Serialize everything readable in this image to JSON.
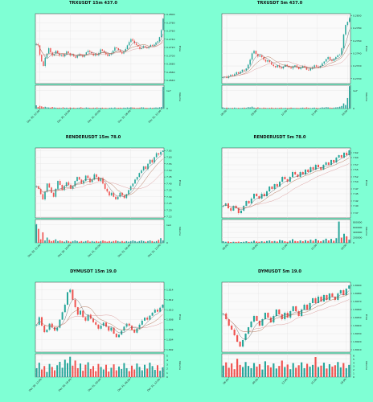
{
  "chart_data": [
    {
      "type": "candlestick",
      "title": "TRXUSDT 15m 437.0",
      "ylabel": "Price",
      "vlabel": "Volume",
      "ylim": [
        0.2632,
        0.2802
      ],
      "yticks": [
        "0.2640",
        "0.2660",
        "0.2680",
        "0.2700",
        "0.2720",
        "0.2740",
        "0.2760",
        "0.2780",
        "0.2800"
      ],
      "vticks": [
        "0",
        "1e7"
      ],
      "vmax": 1.3,
      "xticks": [
        "Dec 30, 12:00",
        "Dec 30, 18:00",
        "Dec 31, 00:00",
        "Dec 31, 06:00",
        "Dec 31, 12:00"
      ],
      "grid": true,
      "closes": [
        0.2728,
        0.2725,
        0.2702,
        0.2686,
        0.2675,
        0.2695,
        0.2705,
        0.2718,
        0.2708,
        0.27,
        0.2704,
        0.2712,
        0.2706,
        0.27,
        0.2702,
        0.2698,
        0.2703,
        0.271,
        0.2706,
        0.27,
        0.2702,
        0.2698,
        0.2695,
        0.27,
        0.2704,
        0.2701,
        0.2697,
        0.2702,
        0.2708,
        0.2712,
        0.2709,
        0.2705,
        0.27,
        0.2704,
        0.2701,
        0.2706,
        0.2715,
        0.2712,
        0.2708,
        0.2703,
        0.2699,
        0.2703,
        0.2706,
        0.2712,
        0.272,
        0.2718,
        0.2714,
        0.2709,
        0.2705,
        0.271,
        0.2716,
        0.2725,
        0.2733,
        0.274,
        0.2736,
        0.273,
        0.2726,
        0.2722,
        0.2716,
        0.2719,
        0.2723,
        0.272,
        0.2718,
        0.2721,
        0.2726,
        0.2724,
        0.2727,
        0.2732,
        0.2735,
        0.2745,
        0.2762,
        0.279
      ],
      "volumes": [
        0.18,
        0.09,
        0.15,
        0.12,
        0.08,
        0.1,
        0.07,
        0.06,
        0.05,
        0.09,
        0.06,
        0.05,
        0.04,
        0.05,
        0.03,
        0.07,
        0.04,
        0.05,
        0.03,
        0.06,
        0.04,
        0.05,
        0.03,
        0.04,
        0.05,
        0.07,
        0.04,
        0.03,
        0.06,
        0.05,
        0.04,
        0.03,
        0.05,
        0.04,
        0.06,
        0.03,
        0.04,
        0.05,
        0.03,
        0.04,
        0.02,
        0.04,
        0.05,
        0.03,
        0.06,
        0.03,
        0.04,
        0.05,
        0.03,
        0.05,
        0.04,
        0.06,
        0.05,
        0.07,
        0.06,
        0.05,
        0.03,
        0.04,
        0.05,
        0.07,
        0.06,
        0.04,
        0.04,
        0.03,
        0.05,
        0.04,
        0.05,
        0.06,
        0.05,
        0.07,
        0.09,
        1.22
      ]
    },
    {
      "type": "candlestick",
      "title": "TRXUSDT 5m 437.0",
      "ylabel": "Price",
      "vlabel": "Volume",
      "ylim": [
        0.2692,
        0.2803
      ],
      "yticks": [
        "0.2700",
        "0.2720",
        "0.2740",
        "0.2760",
        "0.2780",
        "0.2800"
      ],
      "vticks": [
        "0",
        "1e7"
      ],
      "vmax": 1.0,
      "xticks": [
        "06:00",
        "09:00",
        "12:00",
        "15:00",
        "18:00"
      ],
      "grid": true,
      "closes": [
        0.2702,
        0.2703,
        0.2701,
        0.2704,
        0.2706,
        0.2705,
        0.2707,
        0.271,
        0.2708,
        0.2711,
        0.2714,
        0.2713,
        0.2716,
        0.2722,
        0.273,
        0.274,
        0.2744,
        0.2739,
        0.2735,
        0.2737,
        0.2734,
        0.273,
        0.2727,
        0.2729,
        0.2726,
        0.2722,
        0.272,
        0.2718,
        0.2721,
        0.2718,
        0.2716,
        0.2719,
        0.2722,
        0.272,
        0.2718,
        0.2716,
        0.2719,
        0.2721,
        0.2718,
        0.2715,
        0.2717,
        0.272,
        0.2718,
        0.2714,
        0.2713,
        0.2716,
        0.2718,
        0.2721,
        0.2719,
        0.2717,
        0.272,
        0.2724,
        0.2727,
        0.2731,
        0.2734,
        0.273,
        0.2728,
        0.2731,
        0.2734,
        0.2737,
        0.2738,
        0.2748,
        0.277,
        0.2785,
        0.279,
        0.2796
      ],
      "volumes": [
        0.05,
        0.03,
        0.04,
        0.03,
        0.02,
        0.03,
        0.04,
        0.02,
        0.03,
        0.02,
        0.03,
        0.04,
        0.03,
        0.06,
        0.05,
        0.08,
        0.04,
        0.03,
        0.05,
        0.03,
        0.02,
        0.04,
        0.03,
        0.02,
        0.03,
        0.04,
        0.02,
        0.03,
        0.02,
        0.03,
        0.04,
        0.02,
        0.03,
        0.02,
        0.03,
        0.04,
        0.03,
        0.02,
        0.03,
        0.02,
        0.03,
        0.04,
        0.03,
        0.05,
        0.03,
        0.02,
        0.03,
        0.04,
        0.03,
        0.02,
        0.03,
        0.05,
        0.04,
        0.06,
        0.05,
        0.04,
        0.03,
        0.04,
        0.05,
        0.06,
        0.08,
        0.11,
        0.22,
        0.15,
        0.45,
        0.96
      ]
    },
    {
      "type": "candlestick",
      "title": "RENDERUSDT 15m 78.0",
      "ylabel": "Price",
      "vlabel": "Volume",
      "ylim": [
        7.14,
        7.67
      ],
      "yticks": [
        "7.15",
        "7.20",
        "7.25",
        "7.30",
        "7.35",
        "7.40",
        "7.45",
        "7.50",
        "7.55",
        "7.60",
        "7.65"
      ],
      "vticks": [
        "0",
        "1e4"
      ],
      "vmax": 4.0,
      "xticks": [
        "Dec 30, 12:00",
        "Dec 30, 18:00",
        "Dec 31, 00:00",
        "Dec 31, 06:00",
        "Dec 31, 12:00"
      ],
      "grid": true,
      "closes": [
        7.38,
        7.36,
        7.32,
        7.28,
        7.34,
        7.4,
        7.37,
        7.33,
        7.3,
        7.36,
        7.42,
        7.39,
        7.35,
        7.38,
        7.41,
        7.39,
        7.36,
        7.38,
        7.42,
        7.45,
        7.43,
        7.4,
        7.42,
        7.46,
        7.44,
        7.41,
        7.43,
        7.47,
        7.45,
        7.42,
        7.44,
        7.4,
        7.36,
        7.34,
        7.31,
        7.33,
        7.3,
        7.28,
        7.3,
        7.33,
        7.31,
        7.29,
        7.32,
        7.35,
        7.38,
        7.4,
        7.43,
        7.45,
        7.48,
        7.5,
        7.53,
        7.51,
        7.55,
        7.58,
        7.56,
        7.6,
        7.63,
        7.62,
        7.64,
        7.65
      ],
      "volumes": [
        3.2,
        2.4,
        0.6,
        1.8,
        0.4,
        0.9,
        0.5,
        0.3,
        0.4,
        0.6,
        0.3,
        0.4,
        0.3,
        0.2,
        0.4,
        0.3,
        0.2,
        0.3,
        0.4,
        0.3,
        0.2,
        0.3,
        0.2,
        0.3,
        0.4,
        0.2,
        0.3,
        0.2,
        0.3,
        0.2,
        0.3,
        0.4,
        0.3,
        0.2,
        0.3,
        0.2,
        0.3,
        0.4,
        0.3,
        0.2,
        0.3,
        0.2,
        0.3,
        0.2,
        0.3,
        0.4,
        0.3,
        0.2,
        0.3,
        0.4,
        0.3,
        0.2,
        0.3,
        0.4,
        0.3,
        0.2,
        0.3,
        0.5,
        0.8,
        0.4
      ]
    },
    {
      "type": "candlestick",
      "title": "RENDERUSDT 5m 78.0",
      "ylabel": "Price",
      "vlabel": "Volume",
      "ylim": [
        7.35,
        7.64
      ],
      "yticks": [
        "7.37",
        "7.40",
        "7.42",
        "7.45",
        "7.47",
        "7.50",
        "7.52",
        "7.55",
        "7.57",
        "7.60",
        "7.62"
      ],
      "vticks": [
        "0",
        "200000",
        "400000",
        "600000",
        "800000"
      ],
      "vmax": 900000,
      "xticks": [
        "06:00",
        "09:00",
        "12:00",
        "15:00",
        "18:00"
      ],
      "grid": true,
      "closes": [
        7.4,
        7.41,
        7.39,
        7.38,
        7.4,
        7.39,
        7.37,
        7.38,
        7.4,
        7.42,
        7.41,
        7.43,
        7.45,
        7.44,
        7.43,
        7.45,
        7.44,
        7.46,
        7.48,
        7.47,
        7.49,
        7.48,
        7.5,
        7.52,
        7.51,
        7.5,
        7.52,
        7.54,
        7.53,
        7.52,
        7.54,
        7.53,
        7.55,
        7.54,
        7.56,
        7.55,
        7.57,
        7.56,
        7.55,
        7.57,
        7.58,
        7.57,
        7.59,
        7.58,
        7.6,
        7.61,
        7.6,
        7.62,
        7.61,
        7.63
      ],
      "volumes": [
        60000,
        40000,
        50000,
        30000,
        40000,
        35000,
        45000,
        30000,
        40000,
        60000,
        35000,
        45000,
        80000,
        50000,
        40000,
        60000,
        45000,
        70000,
        90000,
        60000,
        70000,
        50000,
        110000,
        90000,
        60000,
        40000,
        80000,
        140000,
        70000,
        60000,
        90000,
        60000,
        100000,
        70000,
        120000,
        80000,
        150000,
        90000,
        60000,
        100000,
        160000,
        90000,
        150000,
        80000,
        180000,
        820000,
        200000,
        350000,
        250000,
        120000
      ]
    },
    {
      "type": "candlestick",
      "title": "DYMUSDT 15m 19.0",
      "ylabel": "Price",
      "vlabel": "Volume",
      "ylim": [
        1.8015,
        1.8155
      ],
      "yticks": [
        "1.802",
        "1.804",
        "1.806",
        "1.808",
        "1.810",
        "1.812",
        "1.814"
      ],
      "vticks": [
        "0",
        "1",
        "2",
        "3",
        "4",
        "5"
      ],
      "vmax": 5.5,
      "xticks": [
        "Dec 30, 12:00",
        "Dec 30, 18:00",
        "Dec 31, 00:00",
        "Dec 31, 06:00",
        "Dec 31, 12:00"
      ],
      "grid": true,
      "closes": [
        1.807,
        1.8085,
        1.8068,
        1.8055,
        1.806,
        1.8072,
        1.8065,
        1.8058,
        1.8064,
        1.808,
        1.8095,
        1.811,
        1.8135,
        1.814,
        1.812,
        1.8105,
        1.809,
        1.8098,
        1.8085,
        1.8078,
        1.809,
        1.8082,
        1.8075,
        1.807,
        1.8062,
        1.8068,
        1.8074,
        1.8066,
        1.8058,
        1.8064,
        1.8052,
        1.8045,
        1.805,
        1.8058,
        1.8066,
        1.8072,
        1.8068,
        1.806,
        1.8054,
        1.8062,
        1.807,
        1.8078,
        1.8084,
        1.808,
        1.8088,
        1.8094,
        1.81,
        1.8096,
        1.8104,
        1.811
      ],
      "volumes": [
        2.1,
        3.4,
        1.8,
        2.6,
        1.2,
        3.1,
        2.4,
        1.6,
        2.8,
        3.6,
        2.2,
        4.1,
        3.3,
        4.8,
        2.7,
        3.9,
        2.1,
        3.2,
        1.5,
        2.9,
        3.5,
        1.9,
        2.6,
        1.4,
        3.1,
        2.4,
        1.8,
        2.9,
        1.3,
        2.2,
        3.0,
        1.6,
        2.5,
        1.9,
        3.3,
        2.1,
        1.4,
        2.7,
        1.8,
        3.2,
        2.4,
        1.6,
        2.9,
        2.0,
        3.4,
        2.6,
        1.7,
        2.8,
        1.5,
        2.3
      ]
    },
    {
      "type": "candlestick",
      "title": "DYMUSDT 5m 19.0",
      "ylabel": "Price",
      "vlabel": "Volume",
      "ylim": [
        1.8007,
        1.8094
      ],
      "yticks": [
        "1.8010",
        "1.8020",
        "1.8030",
        "1.8040",
        "1.8050",
        "1.8060",
        "1.8070",
        "1.8080",
        "1.8090"
      ],
      "vticks": [
        "0",
        "1",
        "2",
        "3",
        "4",
        "5",
        "6"
      ],
      "vmax": 6.5,
      "xticks": [
        "06:00",
        "09:00",
        "12:00",
        "15:00",
        "18:00"
      ],
      "grid": true,
      "closes": [
        1.8055,
        1.8048,
        1.804,
        1.8035,
        1.8028,
        1.802,
        1.8014,
        1.8022,
        1.803,
        1.8038,
        1.8045,
        1.8052,
        1.8046,
        1.804,
        1.8048,
        1.8056,
        1.805,
        1.8044,
        1.8052,
        1.806,
        1.8054,
        1.8048,
        1.8056,
        1.805,
        1.8058,
        1.8064,
        1.8058,
        1.8052,
        1.806,
        1.8066,
        1.806,
        1.8068,
        1.8074,
        1.8068,
        1.8076,
        1.807,
        1.8078,
        1.8072,
        1.808,
        1.8076,
        1.8072,
        1.808,
        1.8084,
        1.8078,
        1.8086,
        1.809
      ],
      "volumes": [
        3.2,
        4.1,
        2.6,
        3.8,
        2.2,
        5.1,
        3.4,
        2.8,
        4.2,
        3.1,
        2.5,
        3.9,
        2.9,
        3.6,
        2.1,
        4.4,
        3.3,
        2.7,
        3.8,
        2.4,
        3.1,
        4.6,
        2.8,
        3.5,
        2.2,
        3.9,
        2.6,
        3.3,
        4.1,
        2.5,
        3.7,
        2.9,
        3.4,
        5.6,
        2.8,
        3.2,
        4.0,
        2.4,
        3.6,
        2.9,
        3.3,
        4.2,
        2.7,
        3.9,
        2.5,
        3.4
      ]
    }
  ]
}
